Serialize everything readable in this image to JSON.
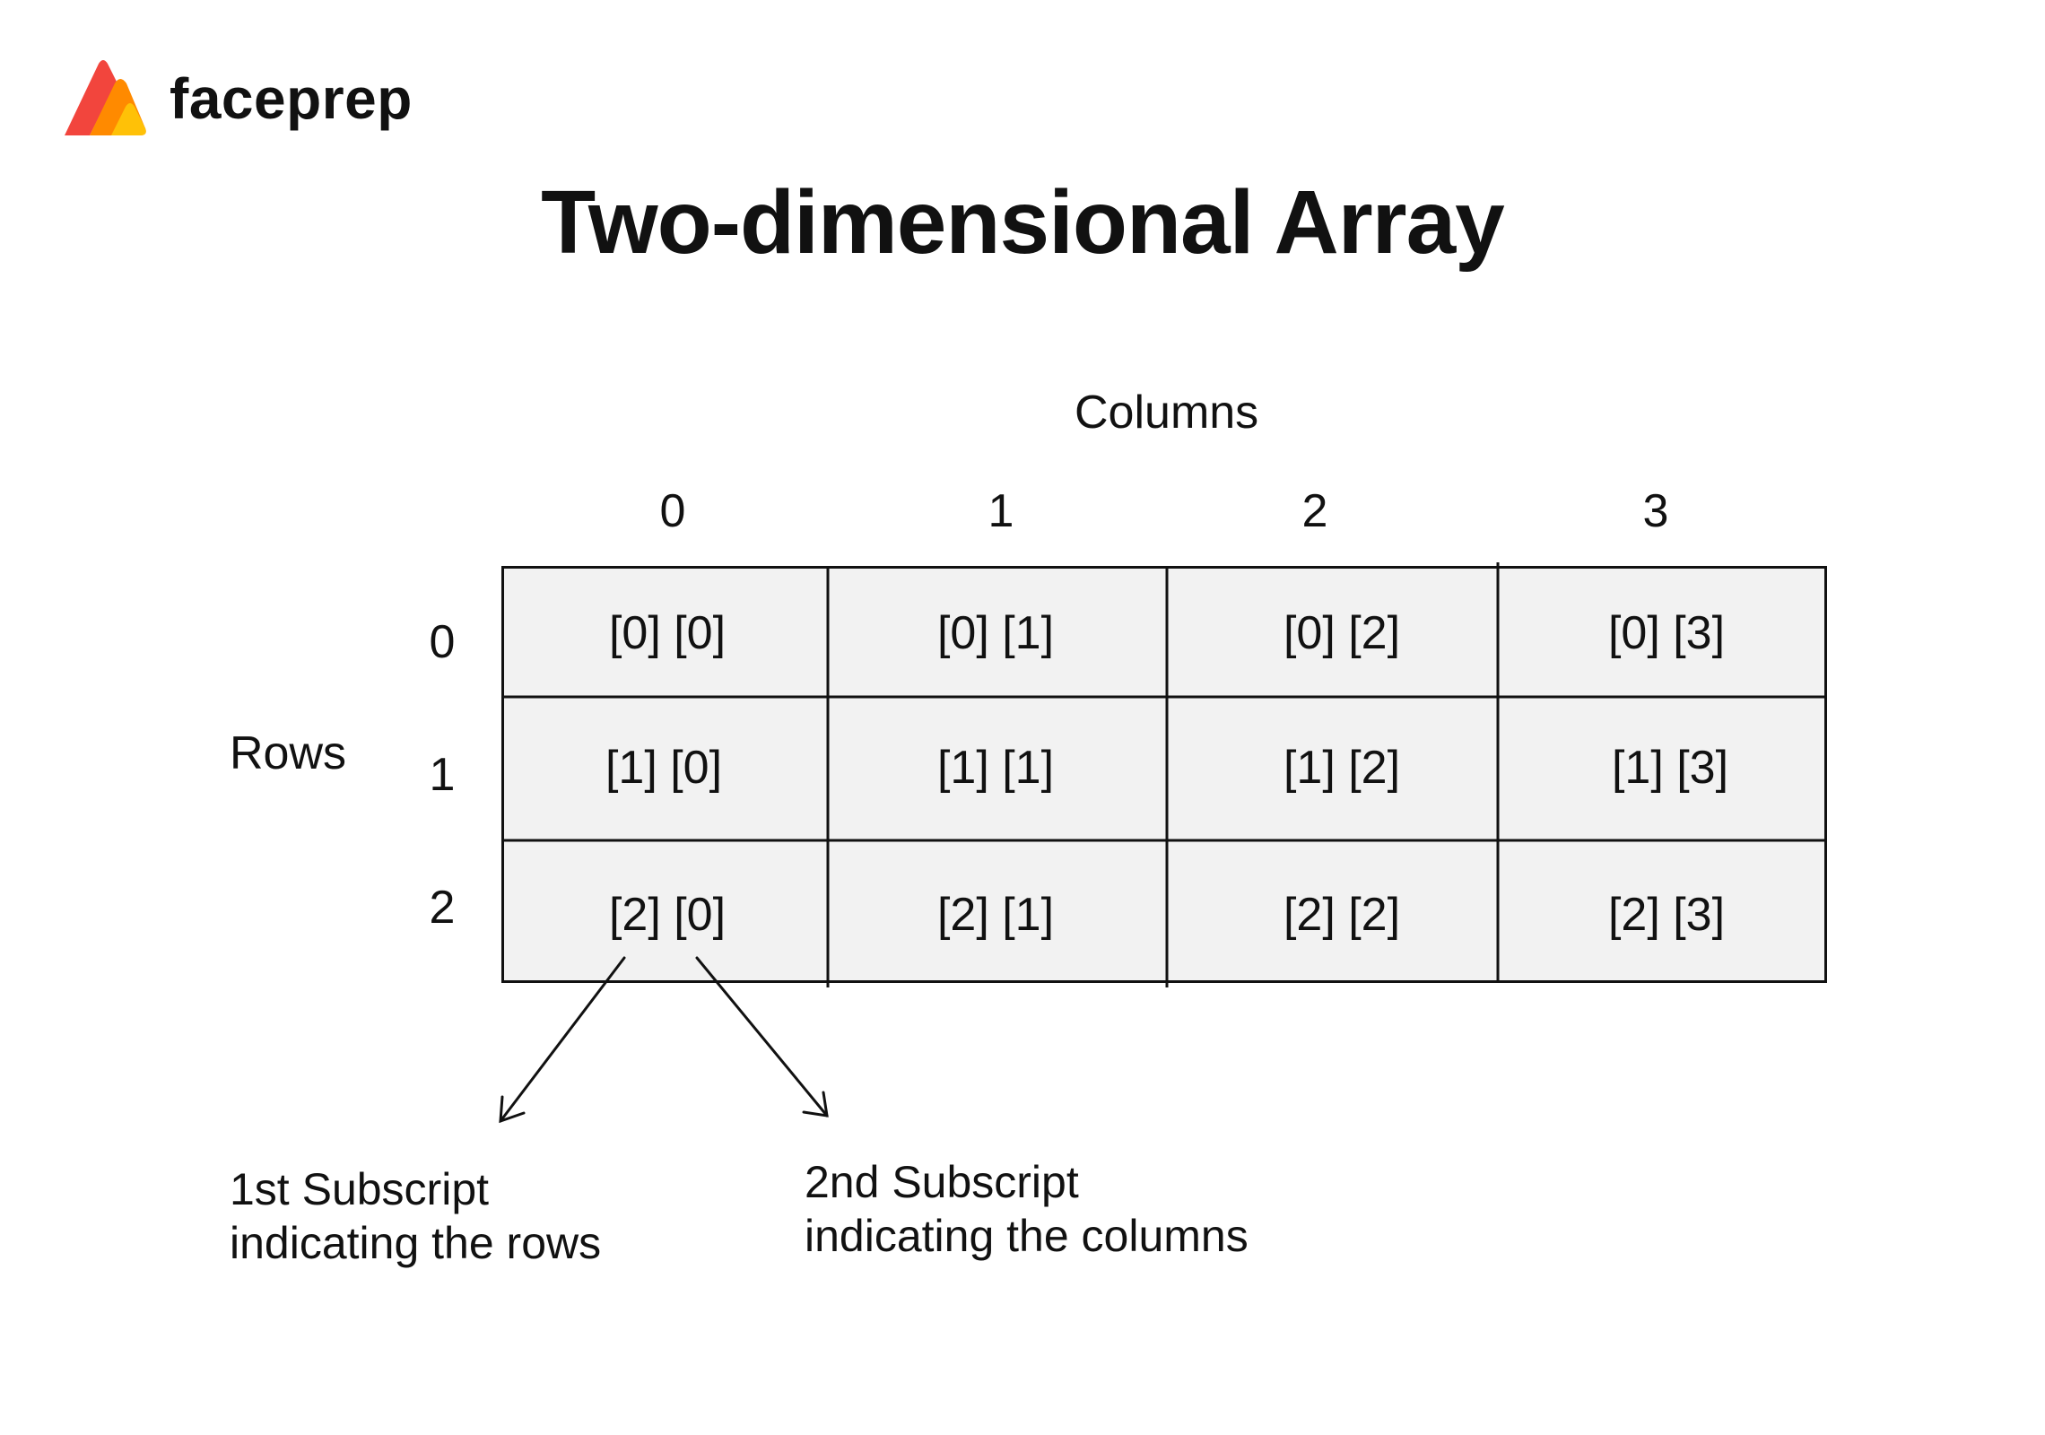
{
  "brand": {
    "name": "faceprep",
    "colors": {
      "red": "#f2453d",
      "orange": "#ff8a00",
      "yellow": "#ffc107"
    }
  },
  "title": "Two-dimensional Array",
  "axes": {
    "columns_label": "Columns",
    "rows_label": "Rows",
    "column_indices": [
      "0",
      "1",
      "2",
      "3"
    ],
    "row_indices": [
      "0",
      "1",
      "2"
    ]
  },
  "grid": {
    "cells": [
      [
        "[0] [0]",
        "[0] [1]",
        "[0] [2]",
        "[0] [3]"
      ],
      [
        "[1] [0]",
        "[1] [1]",
        "[1] [2]",
        "[1] [3]"
      ],
      [
        "[2] [0]",
        "[2] [1]",
        "[2] [2]",
        "[2] [3]"
      ]
    ],
    "cell_color": "#f2f2f2",
    "line_color": "#111111"
  },
  "annotations": {
    "first_subscript": {
      "line1": "1st Subscript",
      "line2": "indicating the rows"
    },
    "second_subscript": {
      "line1": "2nd Subscript",
      "line2": "indicating the columns"
    }
  }
}
